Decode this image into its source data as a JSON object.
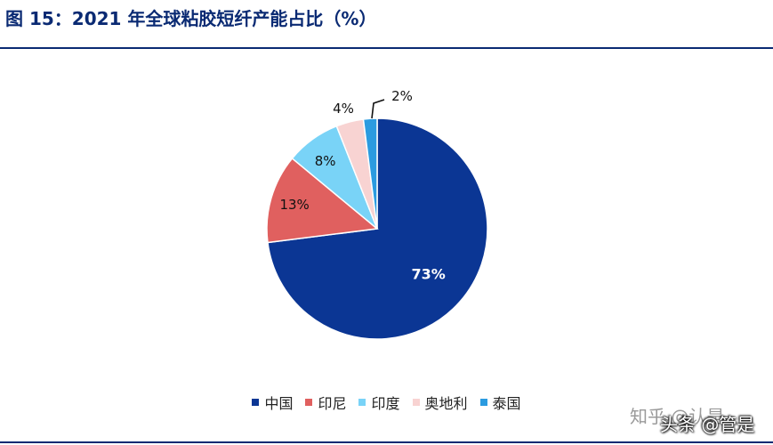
{
  "figure": {
    "title": "图 15：2021 年全球粘胶短纤产能占比（%）"
  },
  "chart_data": {
    "type": "pie",
    "title": "图 15：2021 年全球粘胶短纤产能占比（%）",
    "start_angle_deg": 0,
    "direction": "clockwise",
    "legend_position": "bottom",
    "slices": [
      {
        "name": "中国",
        "value": 73,
        "label": "73%",
        "color": "#0b3694",
        "label_color": "#ffffff"
      },
      {
        "name": "印尼",
        "value": 13,
        "label": "13%",
        "color": "#e0605f",
        "label_color": "#111111"
      },
      {
        "name": "印度",
        "value": 8,
        "label": "8%",
        "color": "#79d3f7",
        "label_color": "#111111"
      },
      {
        "name": "奥地利",
        "value": 4,
        "label": "4%",
        "color": "#f8d3d2",
        "label_color": "#111111"
      },
      {
        "name": "泰国",
        "value": 2,
        "label": "2%",
        "color": "#2b9be0",
        "label_color": "#111111"
      }
    ]
  },
  "watermarks": {
    "zhihu": "知乎 @认是",
    "toutiao": "头条 @管是"
  }
}
